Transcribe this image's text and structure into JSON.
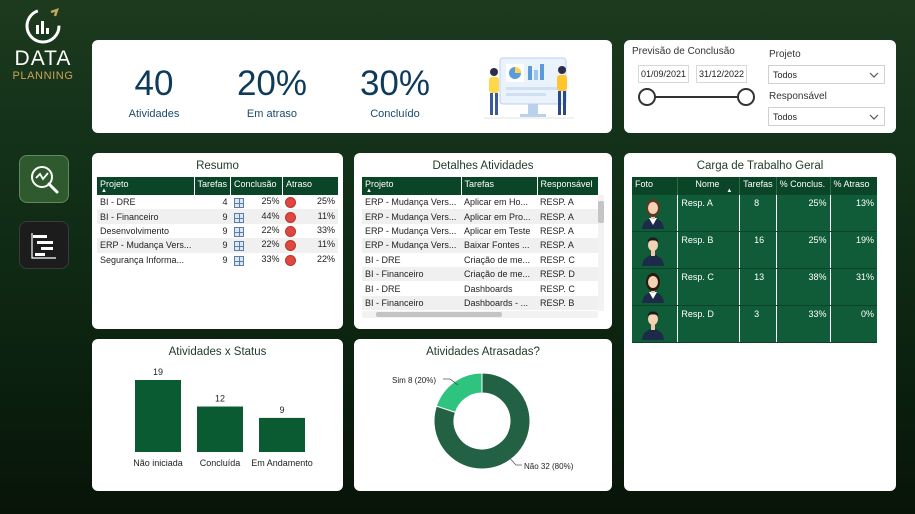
{
  "brand": {
    "line1": "DATA",
    "line2": "PLANNING"
  },
  "nav": [
    {
      "name": "analysis-nav",
      "icon": "magnifier-chart-icon",
      "active": true
    },
    {
      "name": "gantt-nav",
      "icon": "gantt-chart-icon",
      "active": false
    }
  ],
  "kpis": [
    {
      "value": "40",
      "label": "Atividades"
    },
    {
      "value": "20%",
      "label": "Em atraso"
    },
    {
      "value": "30%",
      "label": "Concluído"
    }
  ],
  "filters": {
    "forecast_label": "Previsão de Conclusão",
    "date_start": "01/09/2021",
    "date_end": "31/12/2022",
    "project_label": "Projeto",
    "project_value": "Todos",
    "responsible_label": "Responsável",
    "responsible_value": "Todos"
  },
  "resumo": {
    "title": "Resumo",
    "columns": [
      "Projeto",
      "Tarefas",
      "Conclusão",
      "Atraso"
    ],
    "rows": [
      {
        "projeto": "BI - DRE",
        "tarefas": "4",
        "conclusao": "25%",
        "atraso": "25%"
      },
      {
        "projeto": "BI - Financeiro",
        "tarefas": "9",
        "conclusao": "44%",
        "atraso": "11%"
      },
      {
        "projeto": "Desenvolvimento",
        "tarefas": "9",
        "conclusao": "22%",
        "atraso": "33%"
      },
      {
        "projeto": "ERP - Mudança Vers...",
        "tarefas": "9",
        "conclusao": "22%",
        "atraso": "11%"
      },
      {
        "projeto": "Segurança Informa...",
        "tarefas": "9",
        "conclusao": "33%",
        "atraso": "22%"
      }
    ]
  },
  "detalhes": {
    "title": "Detalhes Atividades",
    "columns": [
      "Projeto",
      "Tarefas",
      "Responsável"
    ],
    "rows": [
      {
        "projeto": "ERP - Mudança Vers...",
        "tarefa": "Aplicar em Ho...",
        "resp": "RESP. A"
      },
      {
        "projeto": "ERP - Mudança Vers...",
        "tarefa": "Aplicar em Pro...",
        "resp": "RESP. A"
      },
      {
        "projeto": "ERP - Mudança Vers...",
        "tarefa": "Aplicar em Teste",
        "resp": "RESP. A"
      },
      {
        "projeto": "ERP - Mudança Vers...",
        "tarefa": "Baixar Fontes ...",
        "resp": "RESP. A"
      },
      {
        "projeto": "BI - DRE",
        "tarefa": "Criação de me...",
        "resp": "RESP. C"
      },
      {
        "projeto": "BI - Financeiro",
        "tarefa": "Criação de me...",
        "resp": "RESP. D"
      },
      {
        "projeto": "BI - DRE",
        "tarefa": "Dashboards",
        "resp": "RESP. C"
      },
      {
        "projeto": "BI - Financeiro",
        "tarefa": "Dashboards - ...",
        "resp": "RESP. B"
      }
    ]
  },
  "carga": {
    "title": "Carga de Trabalho Geral",
    "columns": [
      "Foto",
      "Nome",
      "Tarefas",
      "% Conclus.",
      "% Atraso"
    ],
    "rows": [
      {
        "nome": "Resp. A",
        "tarefas": "8",
        "conclusao": "25%",
        "atraso": "13%",
        "avatar": "woman-avatar-icon"
      },
      {
        "nome": "Resp. B",
        "tarefas": "16",
        "conclusao": "25%",
        "atraso": "19%",
        "avatar": "man-avatar-icon"
      },
      {
        "nome": "Resp. C",
        "tarefas": "13",
        "conclusao": "38%",
        "atraso": "31%",
        "avatar": "woman-avatar-icon"
      },
      {
        "nome": "Resp. D",
        "tarefas": "3",
        "conclusao": "33%",
        "atraso": "0%",
        "avatar": "man-avatar-icon"
      }
    ]
  },
  "chart_data": [
    {
      "type": "bar",
      "title": "Atividades x Status",
      "categories": [
        "Não iniciada",
        "Concluída",
        "Em Andamento"
      ],
      "values": [
        19,
        12,
        9
      ],
      "color": "#0a5a32"
    },
    {
      "type": "pie",
      "title": "Atividades Atrasadas?",
      "donut": true,
      "slices": [
        {
          "label": "Sim",
          "value": 8,
          "percent": "20%",
          "display": "Sim 8 (20%)",
          "color": "#2ec37f"
        },
        {
          "label": "Não",
          "value": 32,
          "percent": "80%",
          "display": "Não 32 (80%)",
          "color": "#226143"
        }
      ]
    }
  ],
  "colors": {
    "accent": "#0a4527",
    "kpi": "#0e3a5c",
    "late": "#e0473f"
  }
}
